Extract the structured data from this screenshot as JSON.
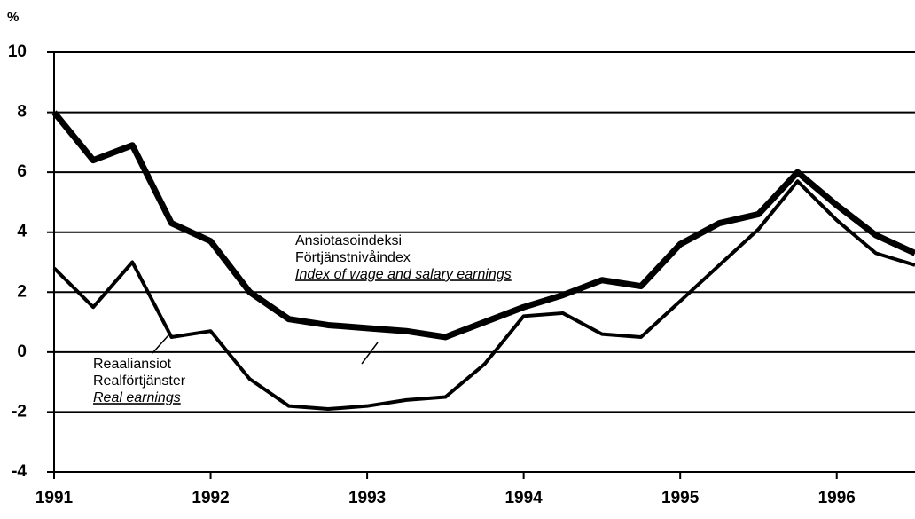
{
  "chart_data": {
    "type": "line",
    "ylabel": "%",
    "x": [
      1991,
      1991.25,
      1991.5,
      1991.75,
      1992,
      1992.25,
      1992.5,
      1992.75,
      1993,
      1993.25,
      1993.5,
      1993.75,
      1994,
      1994.25,
      1994.5,
      1994.75,
      1995,
      1995.25,
      1995.5,
      1995.75,
      1996,
      1996.25,
      1996.5
    ],
    "series": [
      {
        "label_lines": [
          "Ansiotasoindeksi",
          "Förtjänstnivåindex",
          "Index of wage and salary earnings"
        ],
        "color": "#000000",
        "width": 7,
        "values": [
          8.0,
          6.4,
          6.9,
          4.3,
          3.7,
          2.0,
          1.1,
          0.9,
          0.8,
          0.7,
          0.5,
          1.0,
          1.5,
          1.9,
          2.4,
          2.2,
          3.6,
          4.3,
          4.6,
          6.0,
          4.9,
          3.9,
          3.3
        ]
      },
      {
        "label_lines": [
          "Reaaliansiot",
          "Realförtjänster",
          "Real earnings"
        ],
        "color": "#000000",
        "width": 4,
        "values": [
          2.8,
          1.5,
          3.0,
          0.5,
          0.7,
          -0.9,
          -1.8,
          -1.9,
          -1.8,
          -1.6,
          -1.5,
          -0.4,
          1.2,
          1.3,
          0.6,
          0.5,
          1.7,
          2.9,
          4.1,
          5.7,
          4.4,
          3.3,
          2.9
        ]
      }
    ],
    "xlim": [
      1991,
      1996.5
    ],
    "xticks": [
      1991,
      1992,
      1993,
      1994,
      1995,
      1996
    ],
    "ylim": [
      -4,
      10
    ],
    "yticks": [
      -4,
      -2,
      0,
      2,
      4,
      6,
      8,
      10
    ],
    "grid": true
  }
}
